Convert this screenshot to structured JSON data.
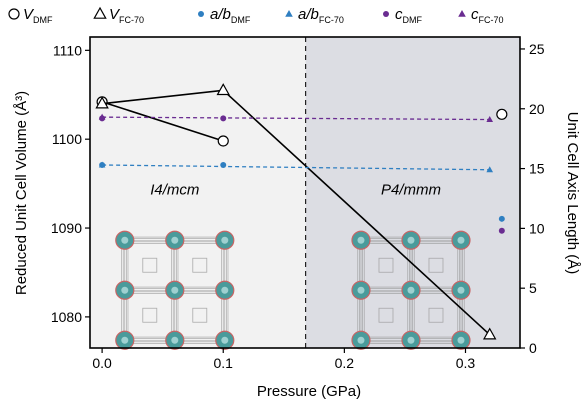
{
  "chart_data": {
    "type": "scatter",
    "xlabel": "Pressure (GPa)",
    "ylabel_left": "Reduced Unit Cell Volume (Å³)",
    "ylabel_right": "Unit Cell Axis Length (Å)",
    "xlim": [
      -0.01,
      0.345
    ],
    "ylim_left": [
      1076.5,
      1111.5
    ],
    "ylim_right": [
      0,
      26
    ],
    "x_ticks": [
      "0.0",
      "0.1",
      "0.2",
      "0.3"
    ],
    "x_tick_values": [
      0.0,
      0.1,
      0.2,
      0.3
    ],
    "y_left_ticks": [
      "1080",
      "1090",
      "1100",
      "1110"
    ],
    "y_left_tick_values": [
      1080,
      1090,
      1100,
      1110
    ],
    "y_right_ticks": [
      "0",
      "5",
      "10",
      "15",
      "20",
      "25"
    ],
    "y_right_tick_values": [
      0,
      5,
      10,
      15,
      20,
      25
    ],
    "phase_boundary_x": 0.168,
    "phases": [
      {
        "label": "I4/mcm",
        "x": 0.06,
        "y": 1093.8
      },
      {
        "label": "P4/mmm",
        "x": 0.255,
        "y": 1093.8
      }
    ],
    "series": [
      {
        "name": "V",
        "sub": "DMF",
        "axis": "left",
        "marker": "circle-open",
        "line": "solid",
        "color": "#000000",
        "points": [
          [
            0.0,
            1104.2
          ],
          [
            0.1,
            1099.8
          ]
        ],
        "extra_points": [
          [
            0.33,
            1102.8
          ]
        ]
      },
      {
        "name": "V",
        "sub": "FC-70",
        "axis": "left",
        "marker": "triangle-open",
        "line": "solid",
        "color": "#000000",
        "points": [
          [
            0.0,
            1104.0
          ],
          [
            0.1,
            1105.5
          ],
          [
            0.32,
            1078.0
          ]
        ]
      },
      {
        "name": "a/b",
        "sub": "DMF",
        "axis": "right",
        "marker": "circle",
        "line": "none",
        "color": "#2f7fc1",
        "points": [
          [
            0.0,
            15.3
          ],
          [
            0.1,
            15.3
          ]
        ],
        "extra_points": [
          [
            0.33,
            10.8
          ]
        ]
      },
      {
        "name": "a/b",
        "sub": "FC-70",
        "axis": "right",
        "marker": "triangle",
        "line": "dashed",
        "color": "#2f7fc1",
        "points": [
          [
            0.0,
            15.3
          ],
          [
            0.32,
            14.9
          ]
        ]
      },
      {
        "name": "c",
        "sub": "DMF",
        "axis": "right",
        "marker": "circle",
        "line": "none",
        "color": "#6a2c91",
        "points": [
          [
            0.0,
            19.2
          ],
          [
            0.1,
            19.2
          ]
        ],
        "extra_points": [
          [
            0.33,
            9.8
          ]
        ]
      },
      {
        "name": "c",
        "sub": "FC-70",
        "axis": "right",
        "marker": "triangle",
        "line": "dashed",
        "color": "#6a2c91",
        "points": [
          [
            0.0,
            19.3
          ],
          [
            0.32,
            19.1
          ]
        ]
      }
    ],
    "colors": {
      "panel_left": "#f2f2f2",
      "panel_right": "#dcdde3",
      "structure_node": "#4a9b9b",
      "structure_link": "#8a8a8a",
      "structure_edge": "#c86464"
    }
  }
}
